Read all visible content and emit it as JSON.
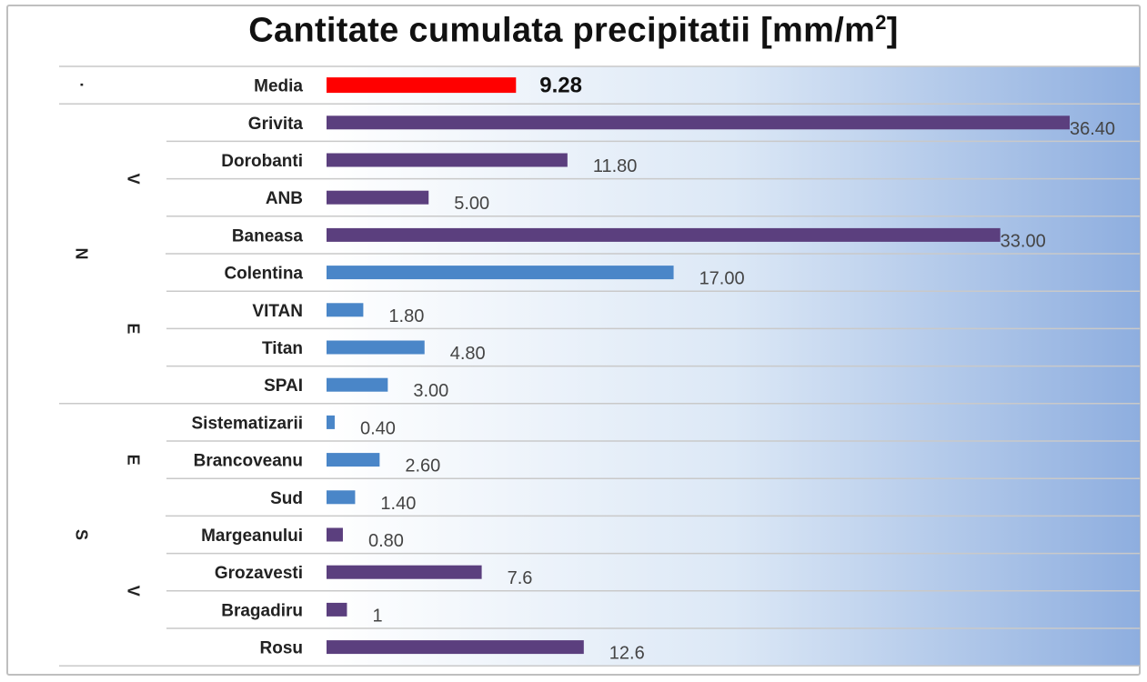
{
  "chart_data": {
    "type": "bar",
    "orientation": "horizontal",
    "title": "Cantitate cumulata precipitatii [mm/m",
    "title_superscript": "2",
    "title_suffix": "]",
    "xlim": [
      0,
      36.4
    ],
    "grid": false,
    "legend": "none",
    "categories": [
      {
        "label": "Media",
        "value": 9.28,
        "value_label": "9.28",
        "color": "#ff0000",
        "group": "·",
        "subgroup": ""
      },
      {
        "label": "Grivita",
        "value": 36.4,
        "value_label": "36.40",
        "color": "#5b3f7e",
        "group": "N",
        "subgroup": "V"
      },
      {
        "label": "Dorobanti",
        "value": 11.8,
        "value_label": "11.80",
        "color": "#5b3f7e",
        "group": "N",
        "subgroup": "V"
      },
      {
        "label": "ANB",
        "value": 5.0,
        "value_label": "5.00",
        "color": "#5b3f7e",
        "group": "N",
        "subgroup": "V"
      },
      {
        "label": "Baneasa",
        "value": 33.0,
        "value_label": "33.00",
        "color": "#5b3f7e",
        "group": "N",
        "subgroup": "V"
      },
      {
        "label": "Colentina",
        "value": 17.0,
        "value_label": "17.00",
        "color": "#4a86c8",
        "group": "N",
        "subgroup": "E"
      },
      {
        "label": "VITAN",
        "value": 1.8,
        "value_label": "1.80",
        "color": "#4a86c8",
        "group": "N",
        "subgroup": "E"
      },
      {
        "label": "Titan",
        "value": 4.8,
        "value_label": "4.80",
        "color": "#4a86c8",
        "group": "N",
        "subgroup": "E"
      },
      {
        "label": "SPAI",
        "value": 3.0,
        "value_label": "3.00",
        "color": "#4a86c8",
        "group": "N",
        "subgroup": "E"
      },
      {
        "label": "Sistematizarii",
        "value": 0.4,
        "value_label": "0.40",
        "color": "#4a86c8",
        "group": "S",
        "subgroup": "E"
      },
      {
        "label": "Brancoveanu",
        "value": 2.6,
        "value_label": "2.60",
        "color": "#4a86c8",
        "group": "S",
        "subgroup": "E"
      },
      {
        "label": "Sud",
        "value": 1.4,
        "value_label": "1.40",
        "color": "#4a86c8",
        "group": "S",
        "subgroup": "E"
      },
      {
        "label": "Margeanului",
        "value": 0.8,
        "value_label": "0.80",
        "color": "#5b3f7e",
        "group": "S",
        "subgroup": "V"
      },
      {
        "label": "Grozavesti",
        "value": 7.6,
        "value_label": "7.6",
        "color": "#5b3f7e",
        "group": "S",
        "subgroup": "V"
      },
      {
        "label": "Bragadiru",
        "value": 1,
        "value_label": "1",
        "color": "#5b3f7e",
        "group": "S",
        "subgroup": "V"
      },
      {
        "label": "Rosu",
        "value": 12.6,
        "value_label": "12.6",
        "color": "#5b3f7e",
        "group": "S",
        "subgroup": "V"
      }
    ],
    "group_labels": [
      {
        "text": "·",
        "first": 0,
        "last": 0,
        "level": "group"
      },
      {
        "text": "N",
        "first": 1,
        "last": 8,
        "level": "group"
      },
      {
        "text": "S",
        "first": 9,
        "last": 15,
        "level": "group"
      },
      {
        "text": "V",
        "first": 1,
        "last": 4,
        "level": "subgroup"
      },
      {
        "text": "E",
        "first": 5,
        "last": 8,
        "level": "subgroup"
      },
      {
        "text": "E",
        "first": 9,
        "last": 11,
        "level": "subgroup"
      },
      {
        "text": "V",
        "first": 12,
        "last": 15,
        "level": "subgroup"
      }
    ],
    "colors": {
      "background_start": "#eef4fb",
      "background_end": "#8eaedf",
      "row_separator": "#c9c9c9"
    }
  }
}
